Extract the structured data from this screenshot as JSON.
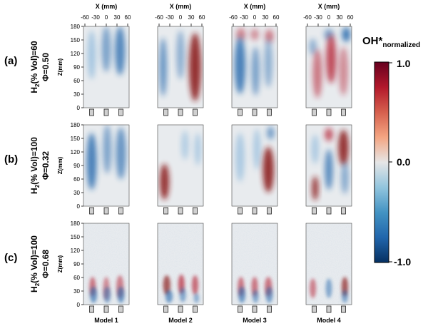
{
  "figure": {
    "x_axis_label": "X (mm)",
    "x_ticks": [
      "-60",
      "-30",
      "0",
      "30",
      "60"
    ],
    "y_axis_label": "Z(mm)",
    "y_ticks": [
      "180",
      "150",
      "120",
      "90",
      "60",
      "30",
      "0"
    ],
    "models": [
      "Model 1",
      "Model 2",
      "Model 3",
      "Model 4"
    ],
    "rows": [
      {
        "label": "(a)",
        "h2_main": "H",
        "h2_sub": "2",
        "h2_rest": "(% Vol)=60",
        "phi": "Φ=0.50"
      },
      {
        "label": "(b)",
        "h2_main": "H",
        "h2_sub": "2",
        "h2_rest": "(% Vol)=100",
        "phi": "Φ=0.32"
      },
      {
        "label": "(c)",
        "h2_main": "H",
        "h2_sub": "2",
        "h2_rest": "(% Vol)=100",
        "phi": "Φ=0.68"
      }
    ],
    "colorbar": {
      "title_main": "OH*",
      "title_sub": "normalized",
      "ticks": [
        "1.0",
        "0.0",
        "-1.0"
      ],
      "colors": [
        "#67001f",
        "#b2182b",
        "#d6604d",
        "#f4a582",
        "#e6e6e6",
        "#92c5de",
        "#4393c3",
        "#2166ac",
        "#053061"
      ]
    }
  }
}
